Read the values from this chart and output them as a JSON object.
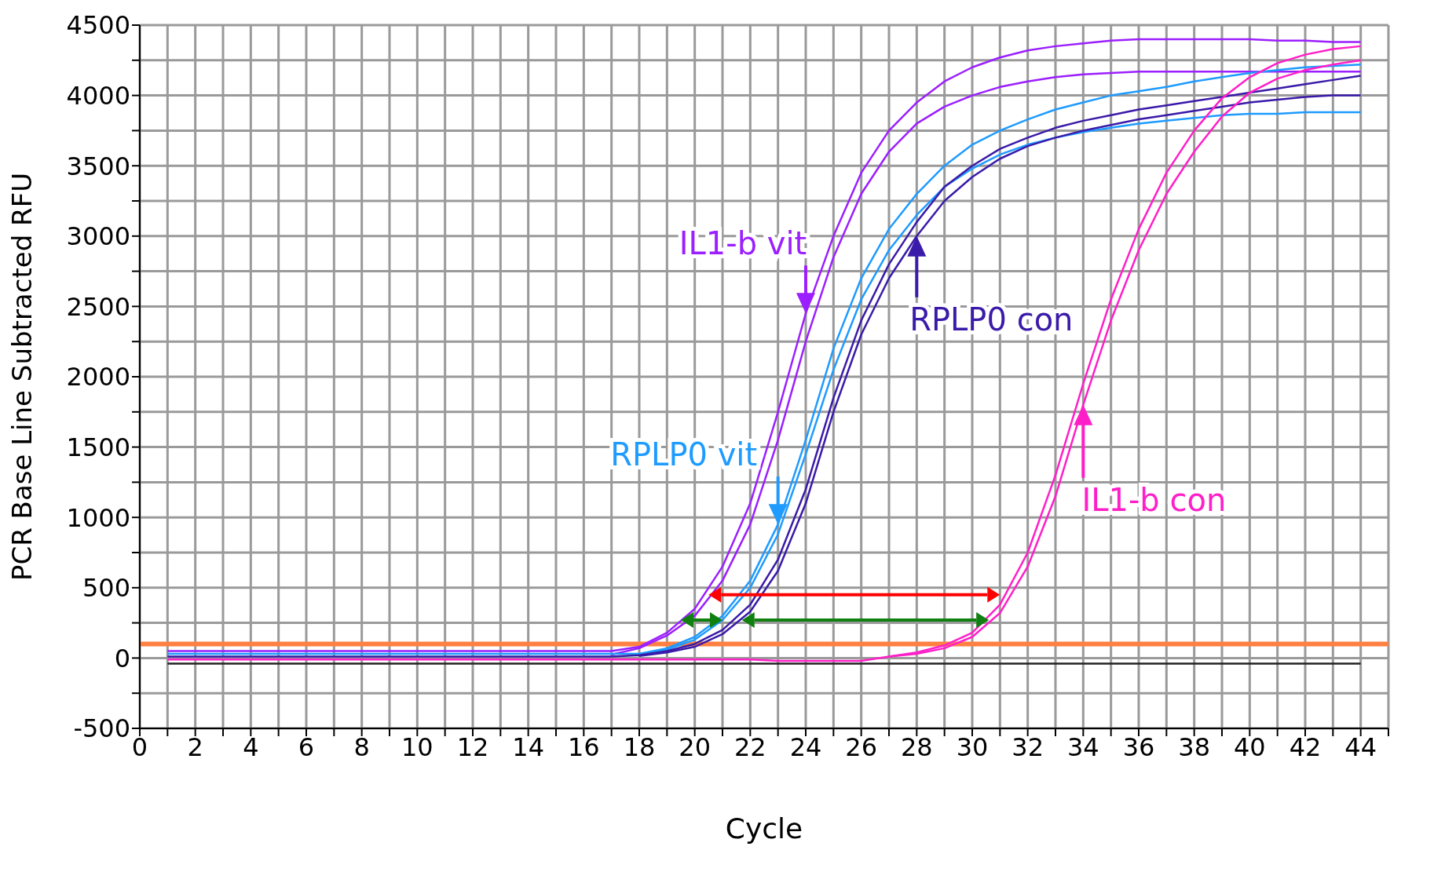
{
  "chart_data": {
    "type": "line",
    "xlabel": "Cycle",
    "ylabel": "PCR Base Line Subtracted RFU",
    "x": [
      1,
      2,
      3,
      4,
      5,
      6,
      7,
      8,
      9,
      10,
      11,
      12,
      13,
      14,
      15,
      16,
      17,
      18,
      19,
      20,
      21,
      22,
      23,
      24,
      25,
      26,
      27,
      28,
      29,
      30,
      31,
      32,
      33,
      34,
      35,
      36,
      37,
      38,
      39,
      40,
      41,
      42,
      43,
      44
    ],
    "series": [
      {
        "color": "#9b1fff",
        "values": [
          50,
          50,
          50,
          50,
          50,
          50,
          50,
          50,
          50,
          50,
          50,
          50,
          50,
          50,
          50,
          50,
          50,
          80,
          180,
          350,
          650,
          1100,
          1750,
          2450,
          3000,
          3450,
          3750,
          3950,
          4100,
          4200,
          4270,
          4320,
          4350,
          4370,
          4390,
          4400,
          4400,
          4400,
          4400,
          4400,
          4390,
          4390,
          4380,
          4380
        ]
      },
      {
        "color": "#9b1fff",
        "values": [
          null,
          null,
          null,
          null,
          null,
          null,
          null,
          null,
          null,
          null,
          null,
          null,
          null,
          null,
          null,
          null,
          25,
          70,
          160,
          300,
          550,
          950,
          1550,
          2250,
          2850,
          3300,
          3600,
          3800,
          3920,
          4000,
          4060,
          4100,
          4130,
          4150,
          4160,
          4170,
          4170,
          4170,
          4170,
          4170,
          4170,
          4170,
          4170,
          4170
        ]
      },
      {
        "color": "#1e9bff",
        "values": [
          30,
          30,
          30,
          30,
          30,
          30,
          30,
          30,
          30,
          30,
          30,
          30,
          30,
          30,
          30,
          30,
          30,
          30,
          70,
          150,
          300,
          550,
          950,
          1550,
          2200,
          2700,
          3050,
          3300,
          3500,
          3650,
          3750,
          3830,
          3900,
          3950,
          4000,
          4030,
          4060,
          4100,
          4130,
          4160,
          4180,
          4200,
          4210,
          4220
        ]
      },
      {
        "color": "#1e9bff",
        "values": [
          null,
          null,
          null,
          null,
          null,
          null,
          null,
          null,
          null,
          null,
          null,
          null,
          null,
          null,
          null,
          null,
          null,
          25,
          60,
          130,
          270,
          500,
          880,
          1450,
          2050,
          2550,
          2900,
          3150,
          3350,
          3480,
          3580,
          3650,
          3700,
          3740,
          3770,
          3800,
          3820,
          3840,
          3860,
          3870,
          3870,
          3880,
          3880,
          3880
        ]
      },
      {
        "color": "#3a1aa8",
        "values": [
          10,
          10,
          10,
          10,
          10,
          10,
          10,
          10,
          10,
          10,
          10,
          10,
          10,
          10,
          10,
          10,
          10,
          20,
          50,
          100,
          200,
          380,
          700,
          1200,
          1850,
          2400,
          2800,
          3100,
          3350,
          3500,
          3620,
          3700,
          3770,
          3820,
          3860,
          3900,
          3930,
          3960,
          3990,
          4020,
          4050,
          4080,
          4110,
          4140
        ]
      },
      {
        "color": "#3a1aa8",
        "values": [
          null,
          null,
          null,
          null,
          null,
          null,
          null,
          null,
          null,
          null,
          null,
          null,
          null,
          null,
          null,
          null,
          null,
          15,
          40,
          80,
          170,
          330,
          620,
          1100,
          1750,
          2300,
          2700,
          3000,
          3250,
          3420,
          3550,
          3640,
          3700,
          3750,
          3790,
          3830,
          3860,
          3890,
          3920,
          3950,
          3970,
          3990,
          4000,
          4000
        ]
      },
      {
        "color": "#ff1fc8",
        "values": [
          -10,
          -10,
          -10,
          -10,
          -10,
          -10,
          -10,
          -10,
          -10,
          -10,
          -10,
          -10,
          -10,
          -10,
          -10,
          -10,
          -10,
          -10,
          -10,
          -10,
          -10,
          -10,
          -20,
          -20,
          -20,
          -20,
          10,
          40,
          90,
          180,
          380,
          750,
          1300,
          1950,
          2550,
          3050,
          3450,
          3750,
          3980,
          4130,
          4230,
          4290,
          4330,
          4350
        ]
      },
      {
        "color": "#ff1fc8",
        "values": [
          null,
          null,
          null,
          null,
          null,
          null,
          null,
          null,
          null,
          null,
          null,
          null,
          null,
          null,
          null,
          null,
          null,
          null,
          null,
          null,
          null,
          null,
          null,
          null,
          null,
          null,
          10,
          30,
          70,
          150,
          320,
          650,
          1150,
          1800,
          2400,
          2900,
          3300,
          3600,
          3850,
          4020,
          4120,
          4180,
          4220,
          4250
        ]
      },
      {
        "color": "#222222",
        "values": [
          -40,
          -40,
          -40,
          -40,
          -40,
          -40,
          -40,
          -40,
          -40,
          -40,
          -40,
          -40,
          -40,
          -40,
          -40,
          -40,
          -40,
          -40,
          -40,
          -40,
          -40,
          -40,
          -40,
          -40,
          -40,
          -40,
          -40,
          -40,
          -40,
          -40,
          -40,
          -40,
          -40,
          -40,
          -40,
          -40,
          -40,
          -40,
          -40,
          -40,
          -40,
          -40,
          -40,
          -40
        ]
      }
    ],
    "xlim": [
      0,
      45
    ],
    "xticks": [
      0,
      {
        "value": 1,
        "label": null
      },
      2,
      {
        "value": 3,
        "label": null
      },
      4,
      {
        "value": 5,
        "label": null
      },
      6,
      {
        "value": 7,
        "label": null
      },
      8,
      {
        "value": 9,
        "label": null
      },
      10,
      {
        "value": 11,
        "label": null
      },
      12,
      {
        "value": 13,
        "label": null
      },
      14,
      {
        "value": 15,
        "label": null
      },
      16,
      {
        "value": 17,
        "label": null
      },
      18,
      {
        "value": 19,
        "label": null
      },
      20,
      {
        "value": 21,
        "label": null
      },
      22,
      {
        "value": 23,
        "label": null
      },
      24,
      {
        "value": 25,
        "label": null
      },
      26,
      {
        "value": 27,
        "label": null
      },
      28,
      {
        "value": 29,
        "label": null
      },
      30,
      {
        "value": 31,
        "label": null
      },
      32,
      {
        "value": 33,
        "label": null
      },
      34,
      {
        "value": 35,
        "label": null
      },
      36,
      {
        "value": 37,
        "label": null
      },
      38,
      {
        "value": 39,
        "label": null
      },
      40,
      {
        "value": 41,
        "label": null
      },
      42,
      {
        "value": 43,
        "label": null
      },
      44,
      {
        "value": 45,
        "label": null
      }
    ],
    "ylim": [
      -500,
      4500
    ],
    "yticks": [
      -500,
      {
        "value": -250,
        "label": null
      },
      0,
      {
        "value": 250,
        "label": null
      },
      500,
      {
        "value": 750,
        "label": null
      },
      1000,
      {
        "value": 1250,
        "label": null
      },
      1500,
      {
        "value": 1750,
        "label": null
      },
      2000,
      {
        "value": 2250,
        "label": null
      },
      2500,
      {
        "value": 2750,
        "label": null
      },
      3000,
      {
        "value": 3250,
        "label": null
      },
      3500,
      {
        "value": 3750,
        "label": null
      },
      4000,
      {
        "value": 4250,
        "label": null
      },
      4500
    ],
    "grid": true,
    "legend": false,
    "marker": "none",
    "line_style": "solid",
    "ref_lines": [
      {
        "axis": "y",
        "value": 100,
        "color": "#ff8040"
      }
    ],
    "annotations": [
      {
        "text": "IL1-b vit",
        "x": 24,
        "y": 2450
      },
      {
        "text": "RPLP0 vit",
        "x": 23,
        "y": 950
      },
      {
        "text": "RPLP0 con",
        "x": 28,
        "y": 3000
      },
      {
        "text": "IL1-b con",
        "x": 34,
        "y": 1800
      }
    ]
  }
}
